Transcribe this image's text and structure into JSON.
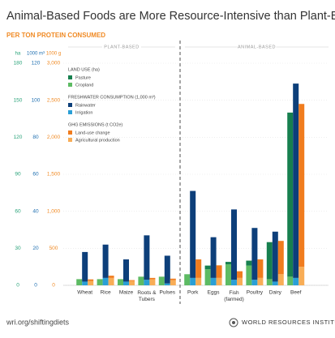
{
  "chart_data": {
    "type": "grouped_stacked_bar",
    "title": "Animal-Based Foods are More Resource-Intensive than Plant-Based Foods",
    "subtitle": "PER TON PROTEIN CONSUMED",
    "section_labels": [
      "PLANT-BASED",
      "ANIMAL-BASED"
    ],
    "categories": [
      "Wheat",
      "Rice",
      "Maize",
      "Roots & Tubers",
      "Pulses",
      "Pork",
      "Eggs",
      "Fish (farmed)",
      "Poultry",
      "Dairy",
      "Beef"
    ],
    "ylabel": "ha",
    "ylim": [
      0,
      180
    ],
    "yticks": [
      0,
      30,
      60,
      90,
      120,
      150,
      180
    ],
    "ycolor": "#2aa37a",
    "y2label": "1000 m³",
    "y2lim": [
      0,
      120
    ],
    "y2ticks": [
      0,
      20,
      40,
      60,
      80,
      100,
      120
    ],
    "y2color": "#1f6fb0",
    "y3label": "1000 g",
    "y3lim": [
      0,
      3000
    ],
    "y3ticks": [
      0,
      500,
      {
        "value": 1000,
        "label": "1,000"
      },
      {
        "value": 1500,
        "label": "1,500"
      },
      {
        "value": 2000,
        "label": "2,000"
      },
      {
        "value": 2500,
        "label": "2,500"
      },
      {
        "value": 3000,
        "label": "3,000"
      }
    ],
    "y3color": "#f08a24",
    "grid": true,
    "measures": [
      {
        "title": "LAND USE (ha)",
        "axis": "y",
        "series": [
          {
            "name": "Pasture",
            "color": "#17804f",
            "values": [
              0,
              0,
              0,
              0,
              0,
              0,
              3,
              2,
              4,
              30,
              133
            ]
          },
          {
            "name": "Cropland",
            "color": "#5dbb63",
            "values": [
              5,
              5,
              5,
              7,
              7,
              9,
              13,
              17,
              16,
              5,
              7
            ]
          }
        ]
      },
      {
        "title": "FRESHWATER CONSUMPTION (1,000 m³)",
        "axis": "y2",
        "series": [
          {
            "name": "Rainwater",
            "color": "#0d3f7a",
            "values": [
              16,
              18,
              12,
              24,
              15,
              47,
              22,
              38,
              28,
              27,
              105
            ]
          },
          {
            "name": "Irrigation",
            "color": "#2a9fd6",
            "values": [
              2,
              4,
              2,
              3,
              1,
              4,
              4,
              3,
              3,
              2,
              4
            ]
          }
        ]
      },
      {
        "title": "GHG EMISSIONS (t CO2e)",
        "axis": "y3",
        "series": [
          {
            "name": "Land-use change",
            "color": "#f07c1e",
            "values": [
              20,
              30,
              10,
              20,
              20,
              250,
              170,
              90,
              250,
              450,
              2200
            ]
          },
          {
            "name": "Agricultural production",
            "color": "#f8ad56",
            "values": [
              60,
              100,
              60,
              80,
              70,
              100,
              100,
              100,
              100,
              150,
              250
            ]
          }
        ]
      }
    ],
    "source": "wri.org/shiftingdiets",
    "publisher": "WORLD RESOURCES INSTITUTE"
  }
}
